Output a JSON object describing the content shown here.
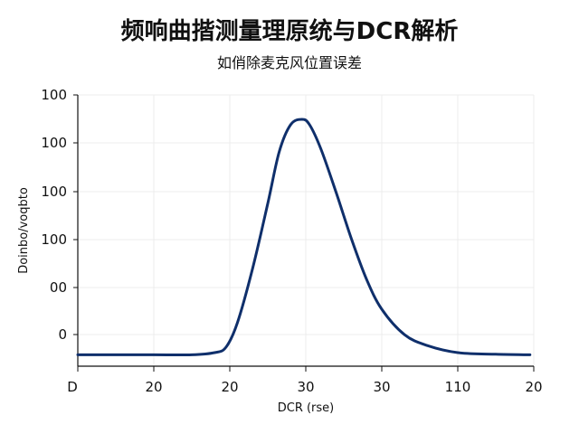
{
  "chart_data": {
    "type": "line",
    "title": "频响曲揩测量理原统与DCR解析",
    "subtitle": "如俏除麦克风位置误差",
    "xlabel": "DCR (rse)",
    "ylabel": "Doinbo/voqbto",
    "x_tick_labels": [
      "D",
      "20",
      "20",
      "30",
      "30",
      "110",
      "20"
    ],
    "y_tick_labels": [
      "100",
      "100",
      "100",
      "100",
      "00",
      "0"
    ],
    "grid": true,
    "legend": "none",
    "line_color": "#0f2f6b",
    "xlim": [
      0,
      6
    ],
    "ylim": [
      0,
      5
    ],
    "series": [
      {
        "x": [
          0,
          0.5,
          1.0,
          1.5,
          1.8,
          1.95,
          2.1,
          2.3,
          2.5,
          2.65,
          2.8,
          2.95,
          3.05,
          3.2,
          3.4,
          3.6,
          3.8,
          4.0,
          4.3,
          4.6,
          5.0,
          5.5,
          5.95
        ],
        "y": [
          0.21,
          0.21,
          0.21,
          0.21,
          0.25,
          0.35,
          0.8,
          1.8,
          3.0,
          3.95,
          4.45,
          4.55,
          4.45,
          4.0,
          3.2,
          2.35,
          1.6,
          1.05,
          0.58,
          0.38,
          0.25,
          0.22,
          0.21
        ]
      }
    ]
  }
}
